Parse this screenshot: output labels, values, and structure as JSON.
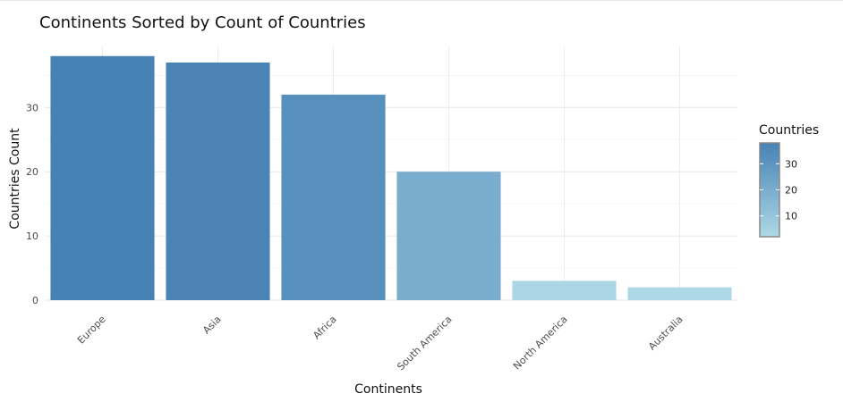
{
  "chart_data": {
    "type": "bar",
    "title": "Continents Sorted by Count of Countries",
    "xlabel": "Continents",
    "ylabel": "Countries Count",
    "categories": [
      "Europe",
      "Asia",
      "Africa",
      "South America",
      "North America",
      "Australia"
    ],
    "values": [
      38,
      37,
      32,
      20,
      3,
      2
    ],
    "ylim": [
      0,
      39.5
    ],
    "yticks": [
      0,
      10,
      20,
      30
    ],
    "grid": true,
    "legend": {
      "title": "Countries",
      "position": "right",
      "ticks": [
        10,
        20,
        30
      ],
      "range": [
        2,
        38
      ],
      "color_low": "#add8e6",
      "color_high": "#4682b4"
    }
  }
}
